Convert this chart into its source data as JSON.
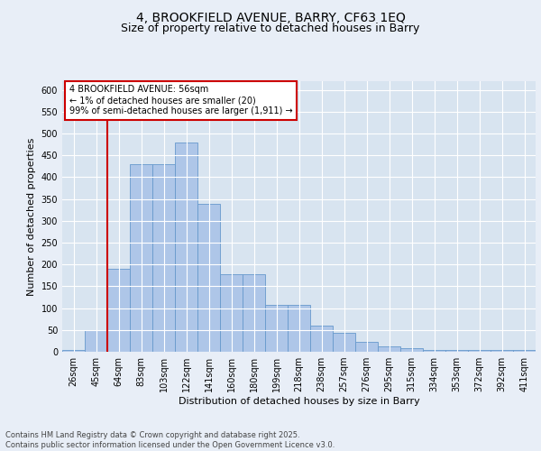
{
  "title_line1": "4, BROOKFIELD AVENUE, BARRY, CF63 1EQ",
  "title_line2": "Size of property relative to detached houses in Barry",
  "xlabel": "Distribution of detached houses by size in Barry",
  "ylabel": "Number of detached properties",
  "categories": [
    "26sqm",
    "45sqm",
    "64sqm",
    "83sqm",
    "103sqm",
    "122sqm",
    "141sqm",
    "160sqm",
    "180sqm",
    "199sqm",
    "218sqm",
    "238sqm",
    "257sqm",
    "276sqm",
    "295sqm",
    "315sqm",
    "334sqm",
    "353sqm",
    "372sqm",
    "392sqm",
    "411sqm"
  ],
  "bar_values": [
    5,
    50,
    190,
    430,
    430,
    480,
    338,
    178,
    178,
    108,
    108,
    60,
    44,
    23,
    12,
    8,
    5,
    5,
    5,
    5,
    5
  ],
  "bar_color": "#aec6e8",
  "bar_edge_color": "#6699cc",
  "vline_color": "#cc0000",
  "vline_x_index": 1.5,
  "annotation_box_text": "4 BROOKFIELD AVENUE: 56sqm\n← 1% of detached houses are smaller (20)\n99% of semi-detached houses are larger (1,911) →",
  "annotation_box_facecolor": "white",
  "annotation_box_edgecolor": "#cc0000",
  "ylim": [
    0,
    620
  ],
  "yticks": [
    0,
    50,
    100,
    150,
    200,
    250,
    300,
    350,
    400,
    450,
    500,
    550,
    600
  ],
  "background_color": "#e8eef7",
  "plot_background_color": "#d8e4f0",
  "grid_color": "white",
  "footer_text": "Contains HM Land Registry data © Crown copyright and database right 2025.\nContains public sector information licensed under the Open Government Licence v3.0.",
  "title_fontsize": 10,
  "subtitle_fontsize": 9,
  "axis_label_fontsize": 8,
  "tick_fontsize": 7,
  "annotation_fontsize": 7,
  "footer_fontsize": 6
}
